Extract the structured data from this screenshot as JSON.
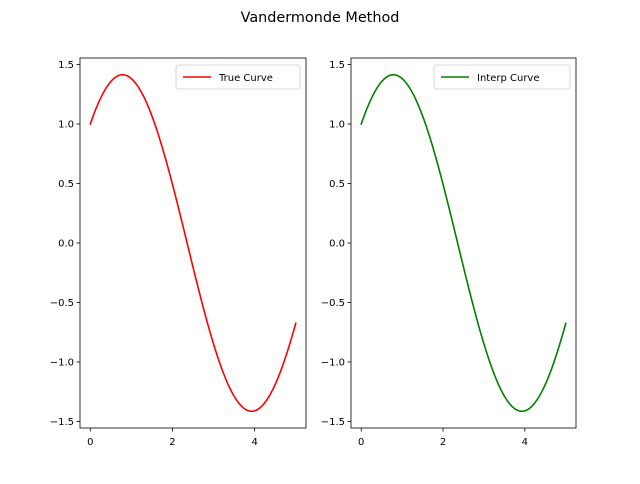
{
  "figure": {
    "suptitle": "Vandermonde Method"
  },
  "chart_data": [
    {
      "type": "line",
      "function": "sin(x)+cos(x)",
      "title": "",
      "xlabel": "",
      "ylabel": "",
      "xlim": [
        -0.25,
        5.25
      ],
      "ylim": [
        -1.555,
        1.555
      ],
      "xticks": [
        0,
        2,
        4
      ],
      "xtick_labels": [
        "0",
        "2",
        "4"
      ],
      "yticks": [
        -1.5,
        -1.0,
        -0.5,
        0.0,
        0.5,
        1.0,
        1.5
      ],
      "ytick_labels": [
        "−1.5",
        "−1.0",
        "−0.5",
        "0.0",
        "0.5",
        "1.0",
        "1.5"
      ],
      "grid": false,
      "legend_position": "upper right",
      "series": [
        {
          "name": "True Curve",
          "color": "#ff0000",
          "x": [
            0,
            0.25,
            0.5,
            0.75,
            1.0,
            1.25,
            1.5,
            1.75,
            2.0,
            2.25,
            2.5,
            2.75,
            3.0,
            3.25,
            3.5,
            3.75,
            4.0,
            4.25,
            4.5,
            4.75,
            5.0
          ],
          "y": [
            1.0,
            1.21,
            1.357,
            1.413,
            1.382,
            1.264,
            1.068,
            0.806,
            0.493,
            0.15,
            -0.203,
            -0.544,
            -0.849,
            -1.102,
            -1.287,
            -1.393,
            -1.411,
            -1.341,
            -1.188,
            -0.961,
            -0.675
          ]
        }
      ]
    },
    {
      "type": "line",
      "function": "sin(x)+cos(x)",
      "title": "",
      "xlabel": "",
      "ylabel": "",
      "xlim": [
        -0.25,
        5.25
      ],
      "ylim": [
        -1.555,
        1.555
      ],
      "xticks": [
        0,
        2,
        4
      ],
      "xtick_labels": [
        "0",
        "2",
        "4"
      ],
      "yticks": [
        -1.5,
        -1.0,
        -0.5,
        0.0,
        0.5,
        1.0,
        1.5
      ],
      "ytick_labels": [
        "−1.5",
        "−1.0",
        "−0.5",
        "0.0",
        "0.5",
        "1.0",
        "1.5"
      ],
      "grid": false,
      "legend_position": "upper right",
      "series": [
        {
          "name": "Interp Curve",
          "color": "#008000",
          "x": [
            0,
            0.25,
            0.5,
            0.75,
            1.0,
            1.25,
            1.5,
            1.75,
            2.0,
            2.25,
            2.5,
            2.75,
            3.0,
            3.25,
            3.5,
            3.75,
            4.0,
            4.25,
            4.5,
            4.75,
            5.0
          ],
          "y": [
            1.0,
            1.21,
            1.357,
            1.413,
            1.382,
            1.264,
            1.068,
            0.806,
            0.493,
            0.15,
            -0.203,
            -0.544,
            -0.849,
            -1.102,
            -1.287,
            -1.393,
            -1.411,
            -1.341,
            -1.188,
            -0.961,
            -0.675
          ]
        }
      ]
    }
  ]
}
